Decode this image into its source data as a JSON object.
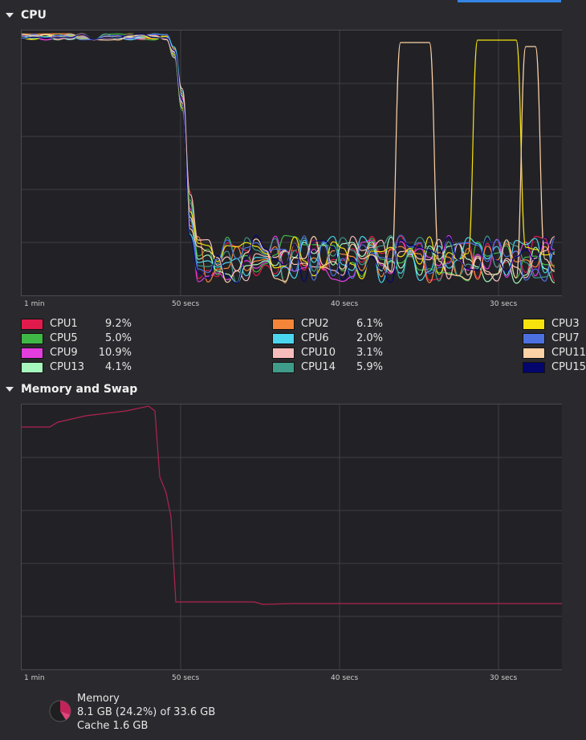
{
  "cpu_section": {
    "title": "CPU",
    "x_ticks": [
      "1 min",
      "50 secs",
      "40 secs",
      "30 secs"
    ],
    "legend": [
      {
        "name": "CPU1",
        "value": "9.2%",
        "color": "#e01b4c"
      },
      {
        "name": "CPU5",
        "value": "5.0%",
        "color": "#3fb845"
      },
      {
        "name": "CPU9",
        "value": "10.9%",
        "color": "#e23ddd"
      },
      {
        "name": "CPU13",
        "value": "4.1%",
        "color": "#a6f7bd"
      },
      {
        "name": "CPU2",
        "value": "6.1%",
        "color": "#f58538"
      },
      {
        "name": "CPU6",
        "value": "2.0%",
        "color": "#4ad6ef"
      },
      {
        "name": "CPU10",
        "value": "3.1%",
        "color": "#f7bcbc"
      },
      {
        "name": "CPU14",
        "value": "5.9%",
        "color": "#3f9b8a"
      },
      {
        "name": "CPU3",
        "value": "",
        "color": "#f6e20d"
      },
      {
        "name": "CPU7",
        "value": "",
        "color": "#4d70e0"
      },
      {
        "name": "CPU11",
        "value": "",
        "color": "#fdd1a6"
      },
      {
        "name": "CPU15",
        "value": "",
        "color": "#05056e"
      }
    ]
  },
  "memory_section": {
    "title": "Memory and Swap",
    "x_ticks": [
      "1 min",
      "50 secs",
      "40 secs",
      "30 secs"
    ],
    "line_color": "#b0234f",
    "memory_label": "Memory",
    "memory_usage": "8.1 GB (24.2%) of 33.6 GB",
    "cache_usage": "Cache 1.6 GB"
  }
}
